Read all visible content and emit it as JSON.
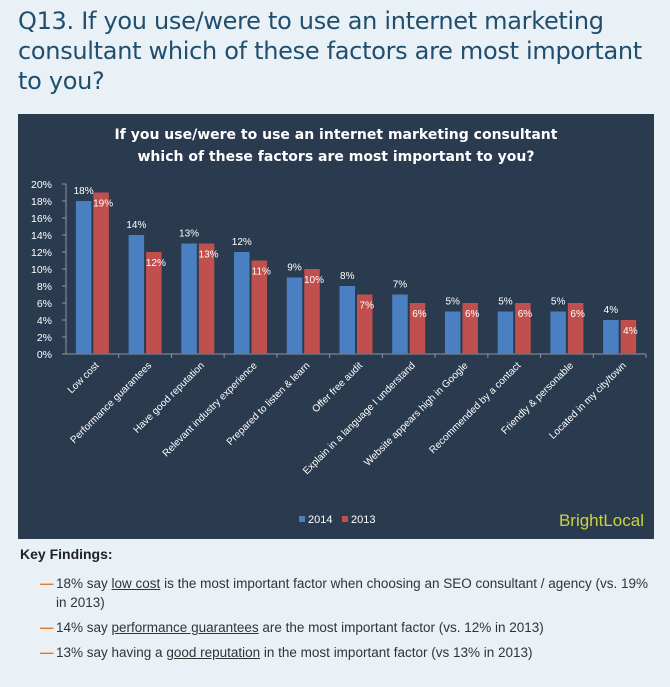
{
  "heading": "Q13. If you use/were to use an internet marketing consultant which of these factors are most important to you?",
  "chart_data": {
    "type": "bar",
    "title_line1": "If you use/were to use an internet marketing consultant",
    "title_line2": "which of these factors are most important to you?",
    "categories": [
      "Low cost",
      "Performance guarantees",
      "Have good reputation",
      "Relevant industry experience",
      "Prepared to listen & learn",
      "Offer free audit",
      "Explain in a language I understand",
      "Website appears high in Google",
      "Recommended by a contact",
      "Friendly & personable",
      "Located in my city/town"
    ],
    "series": [
      {
        "name": "2014",
        "color": "#4a7fc1",
        "values": [
          18,
          14,
          13,
          12,
          9,
          8,
          7,
          5,
          5,
          5,
          4
        ],
        "labels": [
          "18%",
          "14%",
          "13%",
          "12%",
          "9%",
          "8%",
          "7%",
          "5%",
          "5%",
          "5%",
          "4%"
        ]
      },
      {
        "name": "2013",
        "color": "#c0504d",
        "values": [
          19,
          12,
          13,
          11,
          10,
          7,
          6,
          6,
          6,
          6,
          4
        ],
        "labels": [
          "19%",
          "12%",
          "13%",
          "11%",
          "10%",
          "7%",
          "6%",
          "6%",
          "6%",
          "6%",
          "4%"
        ]
      }
    ],
    "ylim": [
      0,
      20
    ],
    "yticks": [
      "0%",
      "2%",
      "4%",
      "6%",
      "8%",
      "10%",
      "12%",
      "14%",
      "16%",
      "18%",
      "20%"
    ],
    "legend_position": "bottom-center",
    "brand": "BrightLocal"
  },
  "findings": {
    "title": "Key Findings:",
    "items": [
      {
        "pre": "18% say ",
        "kw": "low cost",
        "post": " is the most important factor when choosing an SEO consultant / agency (vs. 19% in 2013)"
      },
      {
        "pre": "14% say ",
        "kw": "performance guarantees",
        "post": " are the most important factor (vs. 12% in 2013)"
      },
      {
        "pre": "13% say having a ",
        "kw": "good reputation",
        "post": " in the most important factor (vs 13% in 2013)"
      }
    ]
  }
}
